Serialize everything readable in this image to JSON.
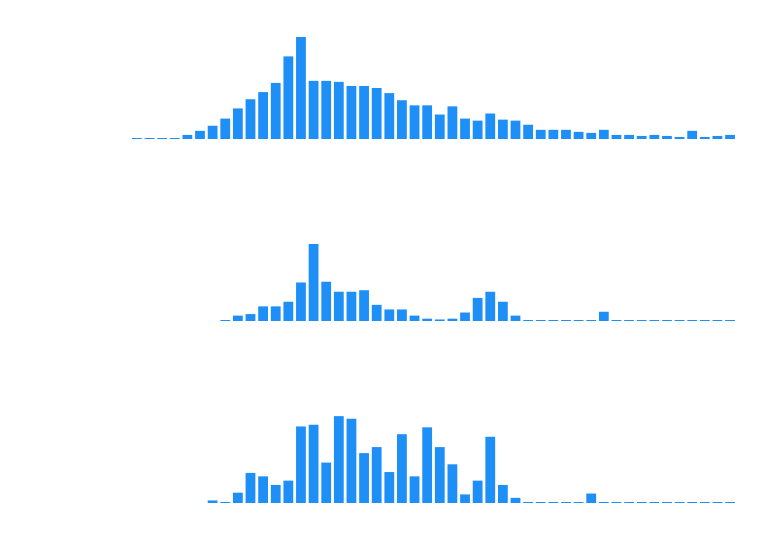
{
  "chart_data": [
    {
      "type": "bar",
      "color": "#1f8ff8",
      "ylim": [
        0,
        100
      ],
      "x": [
        0,
        1,
        2,
        3,
        4,
        5,
        6,
        7,
        8,
        9,
        10,
        11,
        12,
        13,
        14,
        15,
        16,
        17,
        18,
        19,
        20,
        21,
        22,
        23,
        24,
        25,
        26,
        27,
        28,
        29,
        30,
        31,
        32,
        33,
        34,
        35,
        36,
        37,
        38,
        39,
        40,
        41,
        42,
        43,
        44,
        45,
        46,
        47
      ],
      "values": [
        0.5,
        0.5,
        0.5,
        0.5,
        4,
        8,
        13,
        20,
        30,
        39,
        46,
        55,
        81,
        100,
        57,
        57,
        56,
        52,
        52,
        50,
        45,
        38,
        33,
        33,
        24,
        32,
        20,
        18,
        25,
        19,
        18,
        14,
        9,
        9,
        9,
        7,
        6,
        9,
        4,
        4,
        3,
        4,
        3,
        2,
        8,
        2,
        3,
        4
      ]
    },
    {
      "type": "bar",
      "color": "#1f8ff8",
      "ylim": [
        0,
        100
      ],
      "x": [
        7,
        8,
        9,
        10,
        11,
        12,
        13,
        14,
        15,
        16,
        17,
        18,
        19,
        20,
        21,
        22,
        23,
        24,
        25,
        26,
        27,
        28,
        29,
        30,
        31,
        32,
        33,
        34,
        35,
        36,
        37,
        38,
        39,
        40,
        41,
        42,
        43,
        44,
        45,
        46,
        47
      ],
      "values": [
        1,
        7,
        9,
        19,
        19,
        25,
        50,
        100,
        51,
        38,
        38,
        40,
        21,
        15,
        15,
        7,
        3,
        2,
        3,
        11,
        30,
        38,
        25,
        7,
        1,
        0,
        0,
        0,
        0,
        0,
        12,
        1,
        1,
        1,
        1,
        1,
        1,
        1,
        1,
        1,
        1
      ]
    },
    {
      "type": "bar",
      "color": "#1f8ff8",
      "ylim": [
        0,
        100
      ],
      "x": [
        6,
        7,
        8,
        9,
        10,
        11,
        12,
        13,
        14,
        15,
        16,
        17,
        18,
        19,
        20,
        21,
        22,
        23,
        24,
        25,
        26,
        27,
        28,
        29,
        30,
        31,
        32,
        33,
        34,
        35,
        36,
        37,
        38,
        39,
        40,
        41,
        42,
        43,
        44,
        45,
        46,
        47
      ],
      "values": [
        3,
        0,
        12,
        35,
        31,
        21,
        26,
        89,
        91,
        47,
        101,
        98,
        58,
        65,
        36,
        80,
        31,
        88,
        65,
        45,
        10,
        26,
        77,
        21,
        6,
        1,
        1,
        0,
        0,
        0,
        11,
        1,
        1,
        1,
        1,
        1,
        1,
        1,
        1,
        1,
        1,
        1
      ]
    }
  ]
}
